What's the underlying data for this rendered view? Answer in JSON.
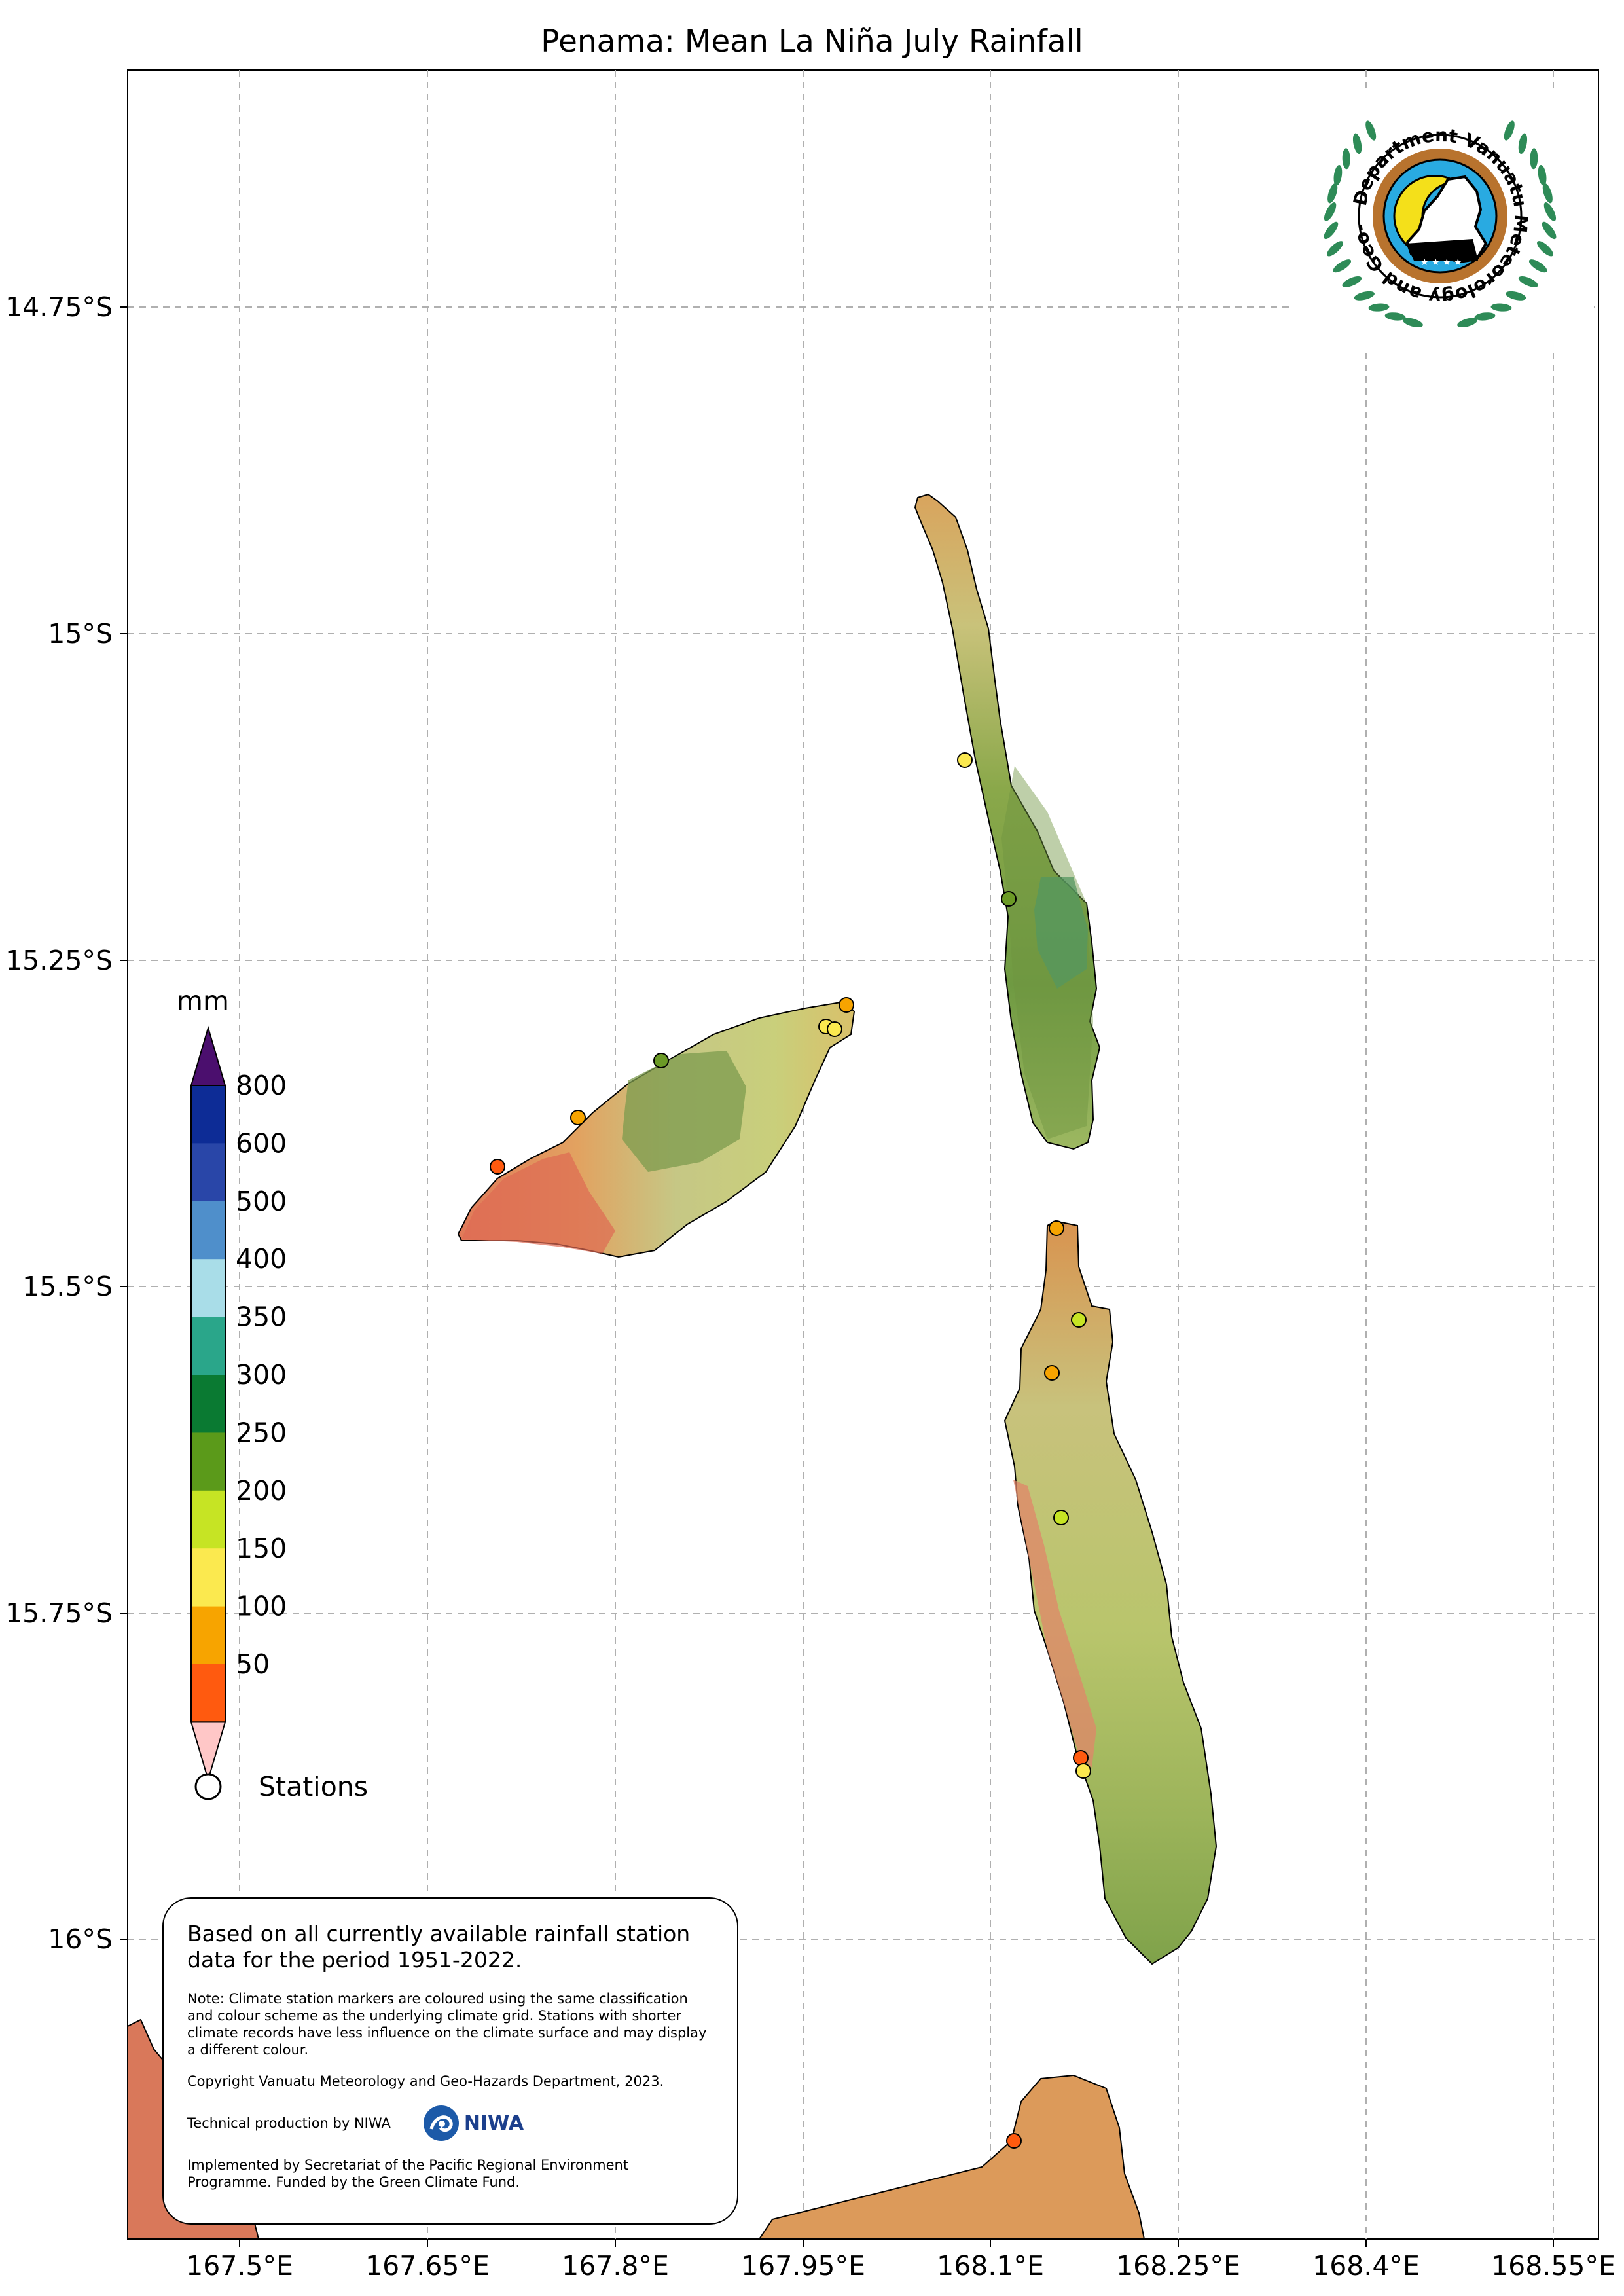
{
  "title": "Penama: Mean La Niña July Rainfall",
  "axes": {
    "lat_ticks": [
      "14.75°S",
      "15°S",
      "15.25°S",
      "15.5°S",
      "15.75°S",
      "16°S"
    ],
    "lon_ticks": [
      "167.5°E",
      "167.65°E",
      "167.8°E",
      "167.95°E",
      "168.1°E",
      "168.25°E",
      "168.4°E",
      "168.55°E"
    ]
  },
  "logo": {
    "organization_text": "Department Vanuatu Meteorology and Geo-Hazards",
    "wreath_color": "#2e8b57",
    "ring_color": "#b8732e",
    "sky_color": "#29aae1",
    "sun_color": "#f4e01a"
  },
  "legend": {
    "unit": "mm",
    "labels": [
      "800",
      "600",
      "500",
      "400",
      "350",
      "300",
      "250",
      "200",
      "150",
      "100",
      "50"
    ],
    "colors": [
      "#4b0f6e",
      "#0d2c96",
      "#2946a8",
      "#4f8fcb",
      "#a9dde8",
      "#2aa68a",
      "#0a7a32",
      "#5b9a1a",
      "#c6e424",
      "#fbe94f",
      "#f7a400",
      "#ff5a0f",
      "#ffc7c7"
    ],
    "stations_label": "Stations"
  },
  "info_box": {
    "main_text": "Based on all currently available rainfall station data for the period 1951-2022.",
    "note": "Note: Climate station markers are coloured using the same classification and colour scheme as the underlying climate grid. Stations with shorter climate records have less influence on the climate surface and may display a different colour.",
    "copyright": "Copyright Vanuatu Meteorology and Geo-Hazards Department, 2023.",
    "technical": "Technical production by NIWA",
    "niwa_name": "NIWA",
    "implemented": "Implemented by Secretariat of the Pacific Regional Environment Programme. Funded by the Green Climate Fund."
  }
}
